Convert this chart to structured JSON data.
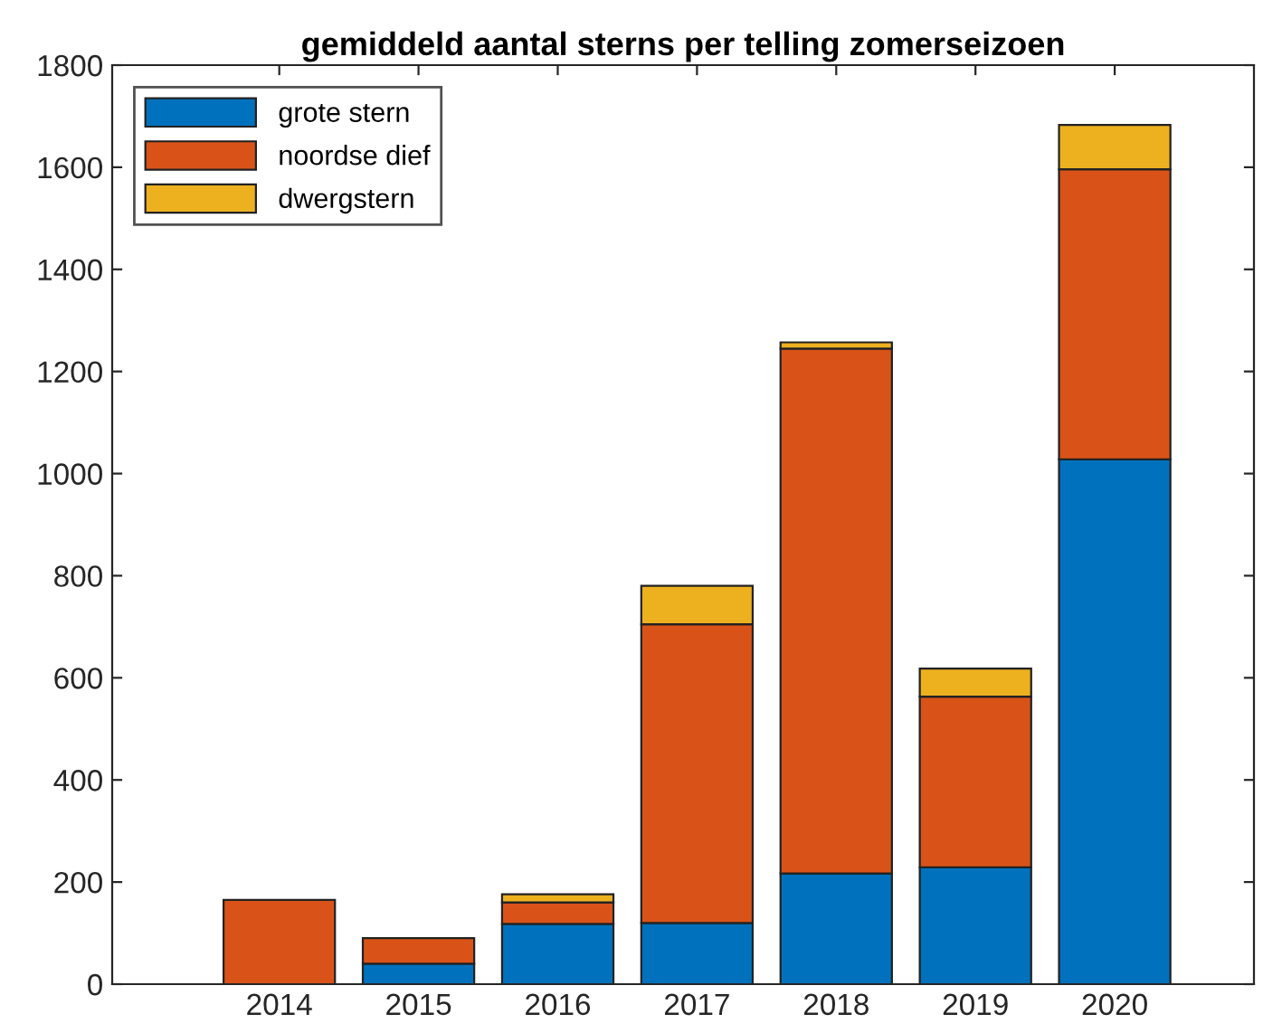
{
  "chart_data": {
    "type": "bar",
    "title": "gemiddeld aantal sterns per telling zomerseizoen",
    "stacked": true,
    "categories": [
      "2014",
      "2015",
      "2016",
      "2017",
      "2018",
      "2019",
      "2020"
    ],
    "series": [
      {
        "name": "grote stern",
        "color": "#0072bd",
        "values": [
          null,
          40,
          118,
          120,
          217,
          229,
          1028
        ]
      },
      {
        "name": "noordse dief",
        "color": "#d95319",
        "values": [
          165,
          50,
          42,
          585,
          1028,
          334,
          568
        ]
      },
      {
        "name": "dwergstern",
        "color": "#edb120",
        "values": [
          null,
          null,
          16,
          75,
          12,
          55,
          87
        ]
      }
    ],
    "ylim": [
      0,
      1800
    ],
    "yticks": [
      0,
      200,
      400,
      600,
      800,
      1000,
      1200,
      1400,
      1600,
      1800
    ],
    "legend": "top left",
    "grid": false
  }
}
